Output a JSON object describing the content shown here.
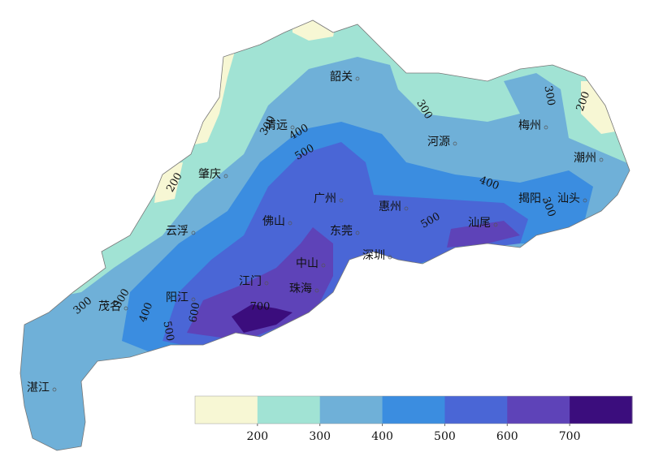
{
  "cities": [
    "韶关",
    "清远",
    "肇庆",
    "云浮",
    "佛山",
    "广州",
    "河源",
    "梅州",
    "潮州",
    "揭阳",
    "汕头",
    "惠州",
    "东莞",
    "深圳",
    "汕尾",
    "中山",
    "江门",
    "珠海",
    "阳江",
    "茂名",
    "湛江"
  ],
  "contour_labels": [
    300,
    400,
    500,
    300,
    300,
    200,
    400,
    300,
    500,
    600,
    700,
    500,
    400,
    300,
    200,
    300
  ],
  "colorbar": {
    "colors": [
      "#f7f7d4",
      "#a1e3d4",
      "#6fb0d8",
      "#3b8de0",
      "#4a66d6",
      "#5e43b8",
      "#3b0d7d"
    ],
    "ticks": [
      200,
      300,
      400,
      500,
      600,
      700
    ]
  }
}
